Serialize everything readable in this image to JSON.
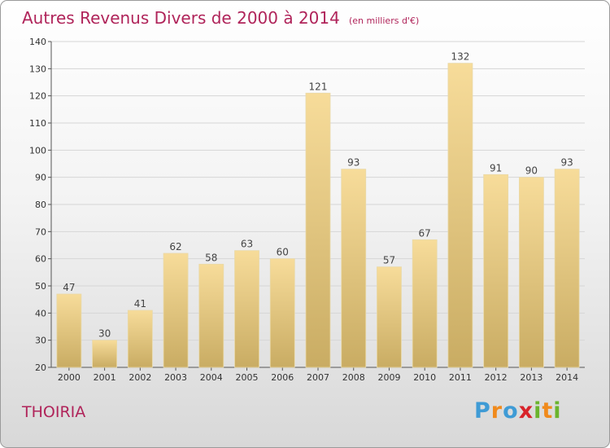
{
  "chart_data": {
    "type": "bar",
    "title": "Autres Revenus Divers de 2000 à 2014",
    "subtitle": "(en milliers d'€)",
    "xlabel": "",
    "ylabel": "",
    "categories": [
      "2000",
      "2001",
      "2002",
      "2003",
      "2004",
      "2005",
      "2006",
      "2007",
      "2008",
      "2009",
      "2010",
      "2011",
      "2012",
      "2013",
      "2014"
    ],
    "values": [
      47,
      30,
      41,
      62,
      58,
      63,
      60,
      121,
      93,
      57,
      67,
      132,
      91,
      90,
      93
    ],
    "ylim": [
      20,
      140
    ],
    "yticks": [
      20,
      30,
      40,
      50,
      60,
      70,
      80,
      90,
      100,
      110,
      120,
      130,
      140
    ],
    "grid": "horizontal",
    "legend": "none",
    "bar_color": "#e6c987",
    "title_color": "#b0245a"
  },
  "commune": "THOIRIA",
  "brand": "Proxiti"
}
